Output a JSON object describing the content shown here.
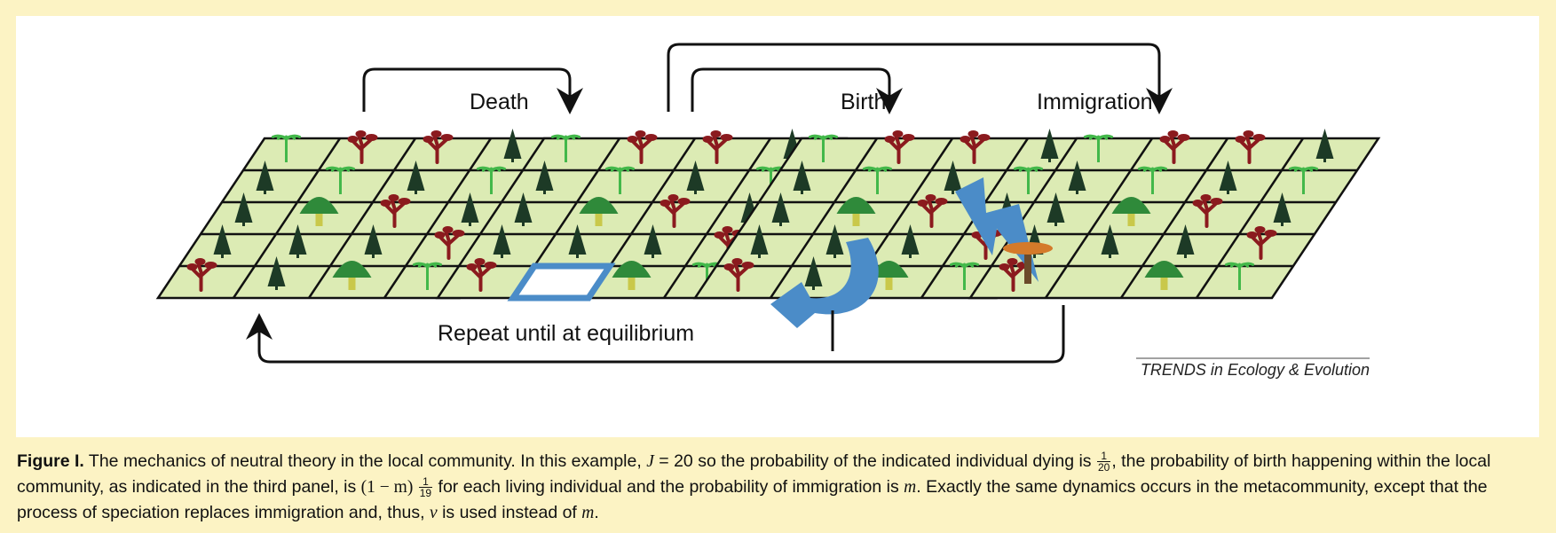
{
  "diagram": {
    "labels": {
      "death": "Death",
      "birth": "Birth",
      "immigration": "Immigration",
      "repeat": "Repeat until at equilibrium"
    },
    "credit": "TRENDS in Ecology & Evolution",
    "panel_count": 4,
    "grid": {
      "rows": 5,
      "cols": 4
    },
    "colors": {
      "cell_fill": "#dcebb4",
      "grid_line": "#111111",
      "palm": "#43b84a",
      "red_tree": "#8b1a1e",
      "conifer": "#1d3a26",
      "willow": "#2f8a3a",
      "highlight": "#4b8cc8",
      "immigrant": "#6b4a2a",
      "panel_background": "#ffffff",
      "figure_background": "#fcf3c4"
    }
  },
  "caption": {
    "figure_label": "Figure I.",
    "p1": "The mechanics of neutral theory in the local community. In this example,",
    "J_symbol": "J",
    "p2": "= 20 so the probability of the indicated individual dying is",
    "frac1_num": "1",
    "frac1_den": "20",
    "p3": ", the probability of birth happening within the local community, as indicated in the third panel, is",
    "birth_expr": "(1 − m)",
    "frac2_num": "1",
    "frac2_den": "19",
    "p4": "for each living individual and the probability of immigration is",
    "m1": "m",
    "p5": ". Exactly the same dynamics occurs in the metacommunity, except that the process of speciation replaces immigration and, thus,",
    "nu": "ν",
    "p6": "is used instead of",
    "m2": "m",
    "p7": "."
  }
}
